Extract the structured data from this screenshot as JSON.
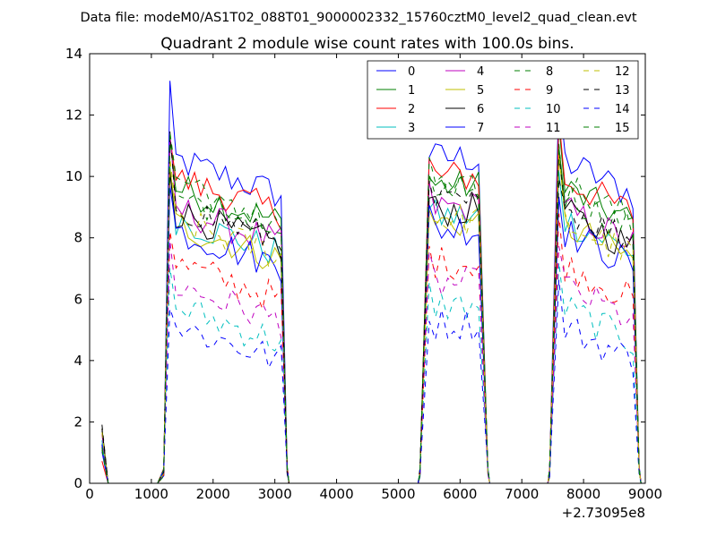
{
  "figure": {
    "suptitle": "Data file: modeM0/AS1T02_088T01_9000002332_15760cztM0_level2_quad_clean.evt",
    "title": "Quadrant 2 module wise count rates with 100.0s bins.",
    "x_offset_label": "+2.73095e8"
  },
  "chart_data": {
    "type": "line",
    "title": "Quadrant 2 module wise count rates with 100.0s bins.",
    "xlabel": "",
    "ylabel": "",
    "xlim": [
      0,
      9000
    ],
    "ylim": [
      0,
      14
    ],
    "x_ticks": [
      0,
      1000,
      2000,
      3000,
      4000,
      5000,
      6000,
      7000,
      8000,
      9000
    ],
    "y_ticks": [
      0,
      2,
      4,
      6,
      8,
      10,
      12,
      14
    ],
    "x_tick_labels": [
      "0",
      "1000",
      "2000",
      "3000",
      "4000",
      "5000",
      "6000",
      "7000",
      "8000",
      "9000"
    ],
    "y_tick_labels": [
      "0",
      "2",
      "4",
      "6",
      "8",
      "10",
      "12",
      "14"
    ],
    "x_offset": "+2.73095e8",
    "grid": false,
    "legend_position": "top-right",
    "legend_columns": 4,
    "series": [
      {
        "name": "0",
        "color": "#0000ff",
        "dash": "solid",
        "level": 10.6
      },
      {
        "name": "1",
        "color": "#007f00",
        "dash": "solid",
        "level": 9.7
      },
      {
        "name": "2",
        "color": "#ff0000",
        "dash": "solid",
        "level": 10.0
      },
      {
        "name": "3",
        "color": "#00bfbf",
        "dash": "solid",
        "level": 8.7
      },
      {
        "name": "4",
        "color": "#bf00bf",
        "dash": "solid",
        "level": 9.0
      },
      {
        "name": "5",
        "color": "#bfbf00",
        "dash": "solid",
        "level": 8.5
      },
      {
        "name": "6",
        "color": "#000000",
        "dash": "solid",
        "level": 8.9
      },
      {
        "name": "7",
        "color": "#0000ff",
        "dash": "solid",
        "level": 8.3
      },
      {
        "name": "8",
        "color": "#007f00",
        "dash": "dashed",
        "level": 9.5
      },
      {
        "name": "9",
        "color": "#ff0000",
        "dash": "dashed",
        "level": 7.2
      },
      {
        "name": "10",
        "color": "#00bfbf",
        "dash": "dashed",
        "level": 5.8
      },
      {
        "name": "11",
        "color": "#bf00bf",
        "dash": "dashed",
        "level": 6.5
      },
      {
        "name": "12",
        "color": "#bfbf00",
        "dash": "dashed",
        "level": 8.6
      },
      {
        "name": "13",
        "color": "#000000",
        "dash": "dashed",
        "level": 9.1
      },
      {
        "name": "14",
        "color": "#0000ff",
        "dash": "dashed",
        "level": 5.2
      },
      {
        "name": "15",
        "color": "#007f00",
        "dash": "dashed",
        "level": 9.8
      }
    ],
    "segments": [
      {
        "rise_start": 1200,
        "plateau_start": 1300,
        "plateau_end": 3100,
        "fall_end": 3200
      },
      {
        "rise_start": 5350,
        "plateau_start": 5500,
        "plateau_end": 6300,
        "fall_end": 6450
      },
      {
        "rise_start": 7450,
        "plateau_start": 7600,
        "plateau_end": 8800,
        "fall_end": 8900
      }
    ],
    "initial_spike": {
      "x": 200,
      "y_max": 2.3
    }
  }
}
